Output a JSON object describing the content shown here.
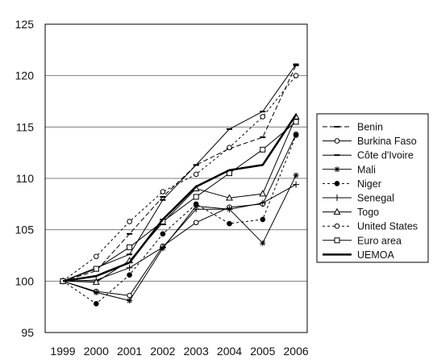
{
  "chart_data": {
    "type": "line",
    "x": [
      1999,
      2000,
      2001,
      2002,
      2003,
      2004,
      2005,
      2006
    ],
    "x_tick_labels": [
      "1999",
      "2000",
      "2001",
      "2002",
      "2003",
      "2004",
      "2005",
      "2006"
    ],
    "ylim": [
      95,
      125
    ],
    "y_ticks": [
      95,
      100,
      105,
      110,
      115,
      120,
      125
    ],
    "y_tick_labels": [
      "95",
      "100",
      "105",
      "110",
      "115",
      "120",
      "125"
    ],
    "grid": "horizontal",
    "legend_position": "right",
    "series": [
      {
        "name": "Benin",
        "values": [
          100,
          101.0,
          104.6,
          108.2,
          111.3,
          112.9,
          114.0,
          121.0
        ],
        "dash": "6,3",
        "marker": "dash",
        "width": 1
      },
      {
        "name": "Burkina Faso",
        "values": [
          100,
          99.0,
          98.6,
          103.4,
          105.7,
          107.2,
          107.5,
          114.3
        ],
        "dash": "",
        "marker": "circle-open",
        "width": 1
      },
      {
        "name": "Côte d'Ivoire",
        "values": [
          100,
          101.3,
          102.6,
          107.9,
          111.3,
          114.8,
          116.5,
          121.1
        ],
        "dash": "",
        "marker": "dash",
        "width": 1
      },
      {
        "name": "Mali",
        "values": [
          100,
          98.9,
          98.1,
          103.2,
          107.3,
          107.0,
          103.7,
          110.3
        ],
        "dash": "",
        "marker": "star",
        "width": 1
      },
      {
        "name": "Niger",
        "values": [
          100,
          97.8,
          100.6,
          104.6,
          107.5,
          105.6,
          106.0,
          114.2
        ],
        "dash": "3,3",
        "marker": "circle-filled",
        "width": 1
      },
      {
        "name": "Senegal",
        "values": [
          100,
          100.1,
          101.3,
          103.3,
          107.0,
          107.0,
          107.6,
          109.4
        ],
        "dash": "",
        "marker": "plus",
        "width": 1
      },
      {
        "name": "Togo",
        "values": [
          100,
          99.9,
          102.0,
          105.7,
          109.0,
          108.1,
          108.5,
          116.0
        ],
        "dash": "",
        "marker": "triangle",
        "width": 1
      },
      {
        "name": "United States",
        "values": [
          100,
          102.4,
          105.8,
          108.7,
          110.4,
          113.0,
          116.0,
          120.0
        ],
        "dash": "3,3",
        "marker": "circle-open",
        "width": 1
      },
      {
        "name": "Euro area",
        "values": [
          100,
          101.2,
          103.3,
          105.8,
          108.2,
          110.5,
          112.8,
          115.5
        ],
        "dash": "",
        "marker": "square",
        "width": 1
      },
      {
        "name": "UEMOA",
        "values": [
          100,
          100.5,
          101.8,
          106.0,
          109.2,
          110.8,
          111.3,
          116.2
        ],
        "dash": "",
        "marker": "none",
        "width": 2.5
      }
    ],
    "colors": {
      "line": "#000000",
      "grid": "#808080",
      "frame": "#000000"
    }
  }
}
